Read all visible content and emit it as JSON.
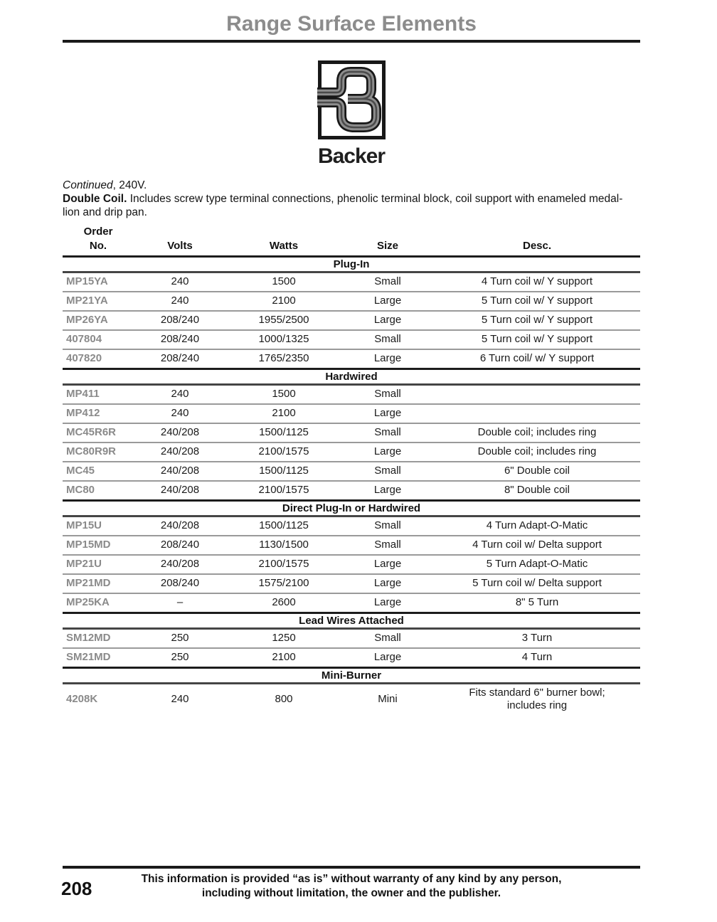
{
  "page": {
    "title": "Range Surface Elements",
    "number": "208"
  },
  "brand": {
    "name": "Backer",
    "logo_icon": "backer-b-tube-logo"
  },
  "intro": {
    "continued_italic": "Continued",
    "continued_rest": ", 240V.",
    "lead": "Double Coil.",
    "body_line1": " Includes screw type terminal connections, phenolic terminal block, coil support with enameled medal-",
    "body_line2": "lion and drip pan."
  },
  "table": {
    "columns": [
      "Order\nNo.",
      "Volts",
      "Watts",
      "Size",
      "Desc."
    ],
    "sections": [
      {
        "label": "Plug-In",
        "rows": [
          [
            "MP15YA",
            "240",
            "1500",
            "Small",
            "4 Turn coil w/ Y support"
          ],
          [
            "MP21YA",
            "240",
            "2100",
            "Large",
            "5 Turn coil w/ Y support"
          ],
          [
            "MP26YA",
            "208/240",
            "1955/2500",
            "Large",
            "5 Turn coil w/ Y support"
          ],
          [
            "407804",
            "208/240",
            "1000/1325",
            "Small",
            "5 Turn coil w/ Y support"
          ],
          [
            "407820",
            "208/240",
            "1765/2350",
            "Large",
            "6 Turn coil/ w/ Y support"
          ]
        ]
      },
      {
        "label": "Hardwired",
        "rows": [
          [
            "MP411",
            "240",
            "1500",
            "Small",
            ""
          ],
          [
            "MP412",
            "240",
            "2100",
            "Large",
            ""
          ],
          [
            "MC45R6R",
            "240/208",
            "1500/1125",
            "Small",
            "Double coil; includes ring"
          ],
          [
            "MC80R9R",
            "240/208",
            "2100/1575",
            "Large",
            "Double coil; includes ring"
          ],
          [
            "MC45",
            "240/208",
            "1500/1125",
            "Small",
            "6\" Double coil"
          ],
          [
            "MC80",
            "240/208",
            "2100/1575",
            "Large",
            "8\" Double coil"
          ]
        ]
      },
      {
        "label": "Direct Plug-In or Hardwired",
        "rows": [
          [
            "MP15U",
            "240/208",
            "1500/1125",
            "Small",
            "4 Turn Adapt-O-Matic"
          ],
          [
            "MP15MD",
            "208/240",
            "1130/1500",
            "Small",
            "4 Turn coil w/ Delta support"
          ],
          [
            "MP21U",
            "240/208",
            "2100/1575",
            "Large",
            "5 Turn Adapt-O-Matic"
          ],
          [
            "MP21MD",
            "208/240",
            "1575/2100",
            "Large",
            "5 Turn coil w/ Delta support"
          ],
          [
            "MP25KA",
            "–",
            "2600",
            "Large",
            "8\" 5 Turn"
          ]
        ]
      },
      {
        "label": "Lead Wires Attached",
        "rows": [
          [
            "SM12MD",
            "250",
            "1250",
            "Small",
            "3 Turn"
          ],
          [
            "SM21MD",
            "250",
            "2100",
            "Large",
            "4 Turn"
          ]
        ]
      },
      {
        "label": "Mini-Burner",
        "rows": [
          [
            "4208K",
            "240",
            "800",
            "Mini",
            "Fits standard 6\" burner bowl;\nincludes ring"
          ]
        ]
      }
    ]
  },
  "footer": {
    "page_number": "208",
    "disclaimer_line1": "This information is provided “as is” without warranty of any kind by any person,",
    "disclaimer_line2": "including without limitation, the owner and the publisher."
  },
  "colors": {
    "title_gray": "#8c8c8c",
    "order_no_gray": "#8a8a8a",
    "rule_black": "#1a1a1a",
    "row_line_gray": "#9a9a9a",
    "logo_tube_gray": "#8d8d8d"
  }
}
